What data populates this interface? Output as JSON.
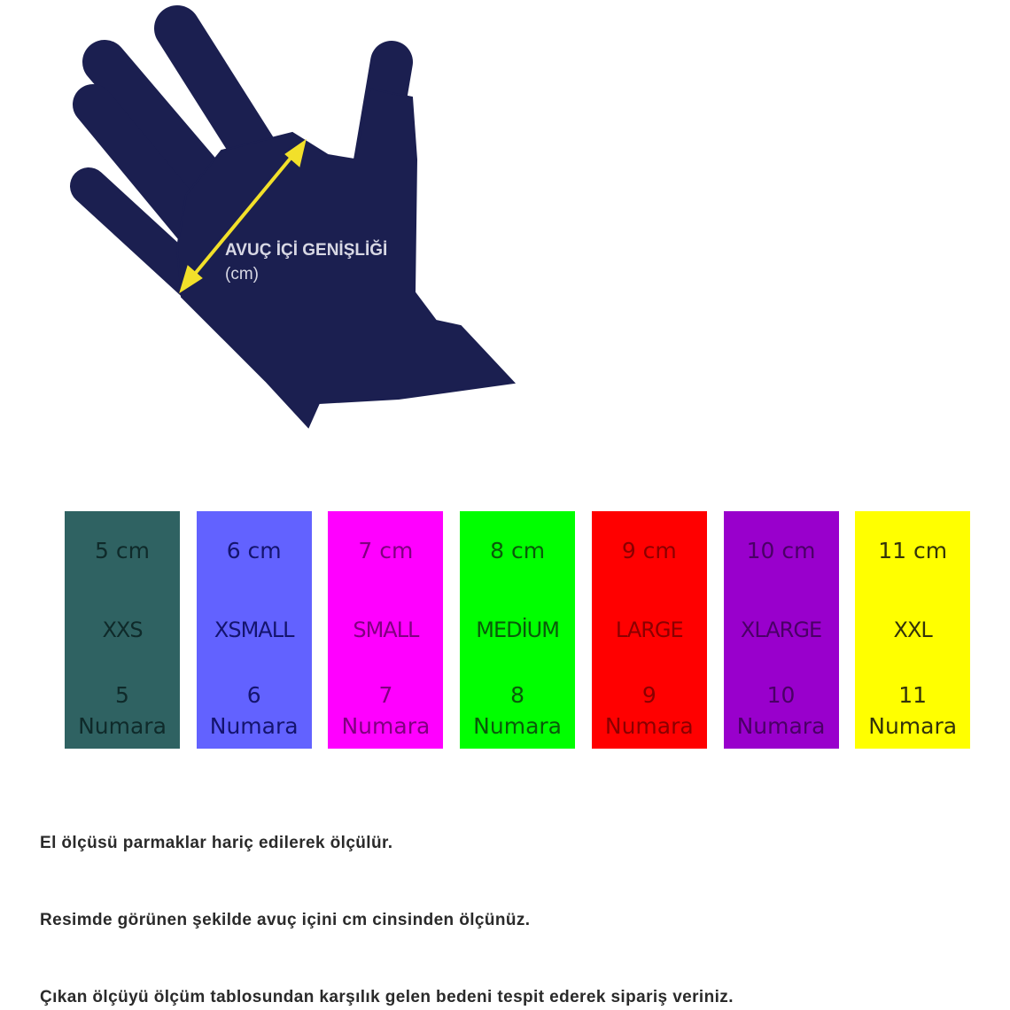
{
  "hand": {
    "label_line1": "AVUÇ İÇİ GENİŞLİĞİ",
    "label_line2": "(cm)",
    "hand_color": "#1b1f50",
    "arrow_color": "#f2e02a"
  },
  "sizes": [
    {
      "cm": "5 cm",
      "size": "XXS",
      "number": "5",
      "numara": "Numara",
      "bg": "#2f6262",
      "fg": "#0f2a2a"
    },
    {
      "cm": "6 cm",
      "size": "XSMALL",
      "number": "6",
      "numara": "Numara",
      "bg": "#6262ff",
      "fg": "#14146e"
    },
    {
      "cm": "7 cm",
      "size": "SMALL",
      "number": "7",
      "numara": "Numara",
      "bg": "#ff00ff",
      "fg": "#800080"
    },
    {
      "cm": "8 cm",
      "size": "MEDİUM",
      "number": "8",
      "numara": "Numara",
      "bg": "#00ff00",
      "fg": "#0a5a0a"
    },
    {
      "cm": "9 cm",
      "size": "LARGE",
      "number": "9",
      "numara": "Numara",
      "bg": "#ff0000",
      "fg": "#8a0000"
    },
    {
      "cm": "10 cm",
      "size": "XLARGE",
      "number": "10",
      "numara": "Numara",
      "bg": "#9900cc",
      "fg": "#4a0066"
    },
    {
      "cm": "11 cm",
      "size": "XXL",
      "number": "11",
      "numara": "Numara",
      "bg": "#ffff00",
      "fg": "#33330a"
    }
  ],
  "notes": [
    "El ölçüsü parmaklar hariç edilerek ölçülür.",
    "Resimde görünen şekilde avuç içini cm cinsinden ölçünüz.",
    "Çıkan ölçüyü ölçüm tablosundan karşılık gelen bedeni tespit ederek sipariş veriniz."
  ]
}
